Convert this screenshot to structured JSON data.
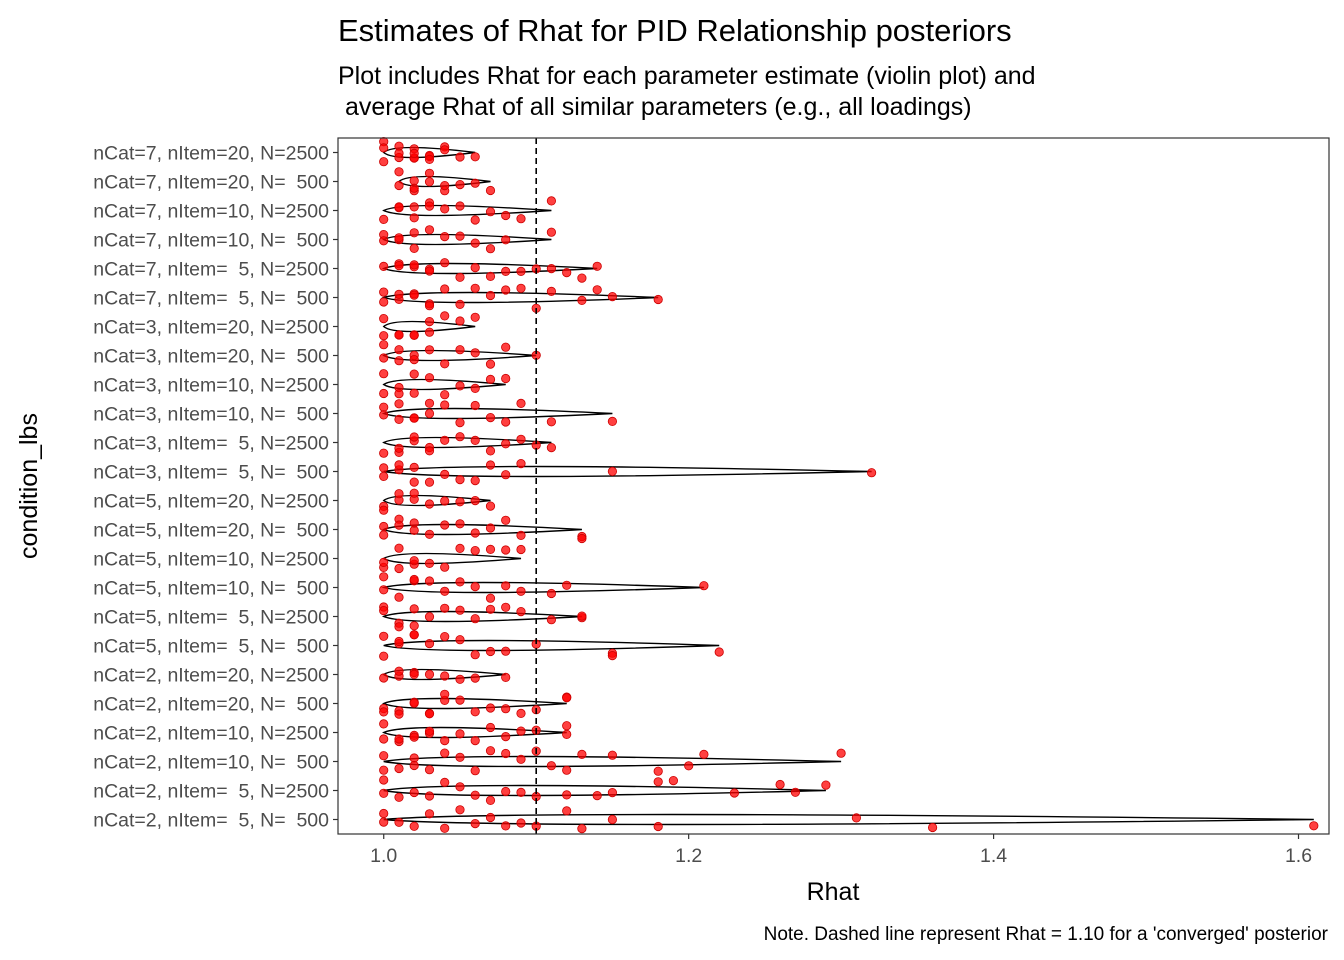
{
  "chart_data": {
    "type": "violin-jitter",
    "title": "Estimates of Rhat for PID Relationship posteriors",
    "subtitle_lines": [
      "Plot includes Rhat for each parameter estimate (violin plot) and",
      " average Rhat of all similar parameters (e.g., all loadings)"
    ],
    "xlabel": "Rhat",
    "ylabel": "condition_lbs",
    "caption": "Note. Dashed line represent Rhat = 1.10 for a 'converged' posterior",
    "xlim": [
      0.97,
      1.62
    ],
    "xticks": [
      1.0,
      1.2,
      1.4,
      1.6
    ],
    "xtick_labels": [
      "1.0",
      "1.2",
      "1.4",
      "1.6"
    ],
    "reference_line": 1.1,
    "point_color": "#ff0000",
    "line_color": "#000000",
    "grid": false,
    "categories": [
      "nCat=7, nItem=20, N=2500",
      "nCat=7, nItem=20, N=  500",
      "nCat=7, nItem=10, N=2500",
      "nCat=7, nItem=10, N=  500",
      "nCat=7, nItem=  5, N=2500",
      "nCat=7, nItem=  5, N=  500",
      "nCat=3, nItem=20, N=2500",
      "nCat=3, nItem=20, N=  500",
      "nCat=3, nItem=10, N=2500",
      "nCat=3, nItem=10, N=  500",
      "nCat=3, nItem=  5, N=2500",
      "nCat=3, nItem=  5, N=  500",
      "nCat=5, nItem=20, N=2500",
      "nCat=5, nItem=20, N=  500",
      "nCat=5, nItem=10, N=2500",
      "nCat=5, nItem=10, N=  500",
      "nCat=5, nItem=  5, N=2500",
      "nCat=5, nItem=  5, N=  500",
      "nCat=2, nItem=20, N=2500",
      "nCat=2, nItem=20, N=  500",
      "nCat=2, nItem=10, N=2500",
      "nCat=2, nItem=10, N=  500",
      "nCat=2, nItem=  5, N=2500",
      "nCat=2, nItem=  5, N=  500"
    ],
    "series": [
      {
        "min": 1.0,
        "max": 1.06,
        "points": [
          1.0,
          1.0,
          1.0,
          1.01,
          1.01,
          1.01,
          1.02,
          1.02,
          1.02,
          1.02,
          1.03,
          1.03,
          1.03,
          1.04,
          1.04,
          1.05,
          1.06
        ]
      },
      {
        "min": 1.01,
        "max": 1.07,
        "points": [
          1.01,
          1.01,
          1.02,
          1.02,
          1.02,
          1.03,
          1.03,
          1.04,
          1.04,
          1.05,
          1.06,
          1.07
        ]
      },
      {
        "min": 1.0,
        "max": 1.11,
        "points": [
          1.0,
          1.01,
          1.01,
          1.02,
          1.02,
          1.03,
          1.03,
          1.04,
          1.05,
          1.06,
          1.07,
          1.08,
          1.09,
          1.11
        ]
      },
      {
        "min": 1.0,
        "max": 1.11,
        "points": [
          1.0,
          1.0,
          1.01,
          1.01,
          1.02,
          1.02,
          1.03,
          1.04,
          1.05,
          1.06,
          1.07,
          1.08,
          1.11
        ]
      },
      {
        "min": 1.0,
        "max": 1.14,
        "points": [
          1.0,
          1.01,
          1.01,
          1.02,
          1.02,
          1.03,
          1.03,
          1.04,
          1.05,
          1.06,
          1.07,
          1.08,
          1.09,
          1.1,
          1.11,
          1.12,
          1.13,
          1.14
        ]
      },
      {
        "min": 1.0,
        "max": 1.18,
        "points": [
          1.0,
          1.0,
          1.01,
          1.01,
          1.02,
          1.02,
          1.03,
          1.03,
          1.04,
          1.05,
          1.06,
          1.07,
          1.08,
          1.09,
          1.1,
          1.11,
          1.13,
          1.14,
          1.15,
          1.18
        ]
      },
      {
        "min": 1.0,
        "max": 1.06,
        "points": [
          1.0,
          1.0,
          1.01,
          1.01,
          1.02,
          1.02,
          1.03,
          1.03,
          1.04,
          1.05,
          1.06
        ]
      },
      {
        "min": 1.0,
        "max": 1.1,
        "points": [
          1.0,
          1.0,
          1.01,
          1.01,
          1.02,
          1.02,
          1.03,
          1.04,
          1.05,
          1.06,
          1.07,
          1.08,
          1.1
        ]
      },
      {
        "min": 1.0,
        "max": 1.08,
        "points": [
          1.0,
          1.0,
          1.01,
          1.01,
          1.02,
          1.02,
          1.03,
          1.04,
          1.05,
          1.06,
          1.07,
          1.08
        ]
      },
      {
        "min": 1.0,
        "max": 1.15,
        "points": [
          1.0,
          1.0,
          1.01,
          1.01,
          1.02,
          1.02,
          1.03,
          1.03,
          1.04,
          1.05,
          1.06,
          1.07,
          1.08,
          1.09,
          1.11,
          1.15
        ]
      },
      {
        "min": 1.0,
        "max": 1.11,
        "points": [
          1.0,
          1.01,
          1.01,
          1.02,
          1.02,
          1.03,
          1.03,
          1.04,
          1.05,
          1.06,
          1.07,
          1.08,
          1.09,
          1.1,
          1.11
        ]
      },
      {
        "min": 1.0,
        "max": 1.32,
        "points": [
          1.0,
          1.0,
          1.01,
          1.01,
          1.02,
          1.02,
          1.03,
          1.04,
          1.05,
          1.06,
          1.07,
          1.08,
          1.09,
          1.15,
          1.32
        ]
      },
      {
        "min": 1.0,
        "max": 1.07,
        "points": [
          1.0,
          1.0,
          1.01,
          1.01,
          1.02,
          1.02,
          1.03,
          1.04,
          1.05,
          1.06,
          1.07
        ]
      },
      {
        "min": 1.0,
        "max": 1.13,
        "points": [
          1.0,
          1.0,
          1.01,
          1.01,
          1.02,
          1.02,
          1.03,
          1.04,
          1.05,
          1.06,
          1.07,
          1.08,
          1.09,
          1.13,
          1.13
        ]
      },
      {
        "min": 1.0,
        "max": 1.09,
        "points": [
          1.0,
          1.0,
          1.01,
          1.01,
          1.02,
          1.02,
          1.03,
          1.04,
          1.05,
          1.06,
          1.07,
          1.08,
          1.09
        ]
      },
      {
        "min": 1.0,
        "max": 1.21,
        "points": [
          1.0,
          1.0,
          1.01,
          1.02,
          1.02,
          1.03,
          1.04,
          1.05,
          1.06,
          1.07,
          1.08,
          1.09,
          1.11,
          1.12,
          1.21
        ]
      },
      {
        "min": 1.0,
        "max": 1.13,
        "points": [
          1.0,
          1.0,
          1.01,
          1.01,
          1.02,
          1.02,
          1.03,
          1.04,
          1.05,
          1.06,
          1.07,
          1.08,
          1.09,
          1.11,
          1.13,
          1.13
        ]
      },
      {
        "min": 1.0,
        "max": 1.22,
        "points": [
          1.0,
          1.0,
          1.01,
          1.01,
          1.02,
          1.02,
          1.03,
          1.04,
          1.05,
          1.06,
          1.07,
          1.08,
          1.1,
          1.15,
          1.15,
          1.22
        ]
      },
      {
        "min": 1.0,
        "max": 1.08,
        "points": [
          1.0,
          1.01,
          1.01,
          1.02,
          1.02,
          1.03,
          1.04,
          1.05,
          1.06,
          1.08
        ]
      },
      {
        "min": 1.0,
        "max": 1.12,
        "points": [
          1.0,
          1.0,
          1.01,
          1.01,
          1.02,
          1.02,
          1.03,
          1.03,
          1.04,
          1.04,
          1.05,
          1.06,
          1.07,
          1.08,
          1.09,
          1.1,
          1.12,
          1.12
        ]
      },
      {
        "min": 1.0,
        "max": 1.12,
        "points": [
          1.0,
          1.0,
          1.01,
          1.01,
          1.02,
          1.02,
          1.03,
          1.03,
          1.04,
          1.05,
          1.06,
          1.07,
          1.08,
          1.09,
          1.1,
          1.12,
          1.12
        ]
      },
      {
        "min": 1.0,
        "max": 1.3,
        "points": [
          1.0,
          1.0,
          1.01,
          1.02,
          1.02,
          1.03,
          1.04,
          1.05,
          1.06,
          1.07,
          1.08,
          1.09,
          1.1,
          1.11,
          1.12,
          1.13,
          1.15,
          1.18,
          1.2,
          1.21,
          1.3
        ]
      },
      {
        "min": 1.0,
        "max": 1.29,
        "points": [
          1.0,
          1.0,
          1.01,
          1.02,
          1.03,
          1.04,
          1.05,
          1.06,
          1.07,
          1.08,
          1.09,
          1.1,
          1.12,
          1.14,
          1.15,
          1.18,
          1.19,
          1.23,
          1.26,
          1.27,
          1.29
        ]
      },
      {
        "min": 1.0,
        "max": 1.61,
        "points": [
          1.0,
          1.0,
          1.01,
          1.02,
          1.03,
          1.04,
          1.05,
          1.06,
          1.07,
          1.08,
          1.09,
          1.1,
          1.12,
          1.13,
          1.15,
          1.18,
          1.31,
          1.36,
          1.61
        ]
      }
    ]
  }
}
